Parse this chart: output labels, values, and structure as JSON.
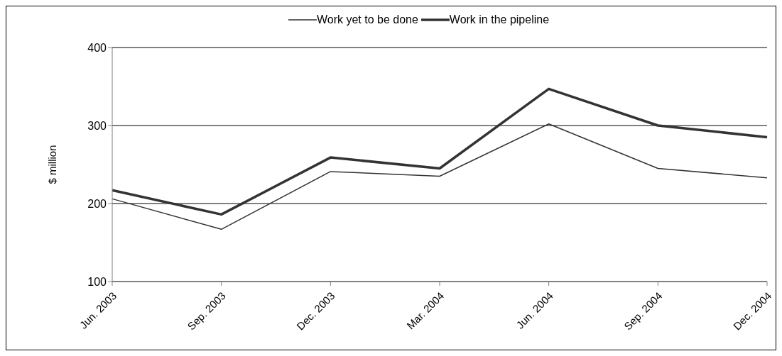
{
  "chart_data": {
    "type": "line",
    "ylabel": "$ million",
    "categories": [
      "Jun. 2003",
      "Sep. 2003",
      "Dec. 2003",
      "Mar. 2004",
      "Jun. 2004",
      "Sep. 2004",
      "Dec. 2004"
    ],
    "series": [
      {
        "name": "Work yet to be done",
        "color": "#333333",
        "values": [
          206,
          167,
          241,
          235,
          302,
          245,
          233
        ]
      },
      {
        "name": "Work in the pipeline",
        "color": "#333333",
        "values": [
          217,
          186,
          259,
          245,
          347,
          300,
          285
        ]
      }
    ],
    "ylim": [
      100,
      400
    ],
    "yticks": [
      100,
      200,
      300,
      400
    ],
    "grid": "y",
    "legend": "top",
    "marker": "none",
    "line_style": "solid"
  }
}
